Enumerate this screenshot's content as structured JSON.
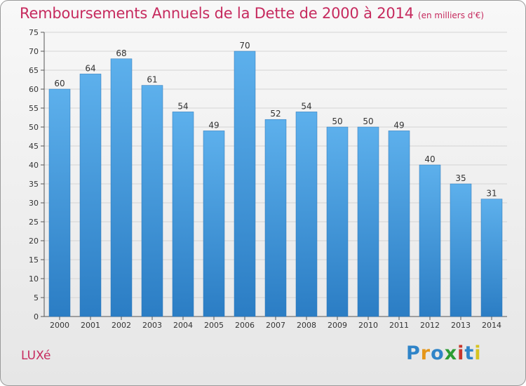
{
  "chart_data": {
    "type": "bar",
    "title": "Remboursements Annuels de la Dette de 2000 à 2014",
    "subtitle": "(en milliers d'€)",
    "categories": [
      "2000",
      "2001",
      "2002",
      "2003",
      "2004",
      "2005",
      "2006",
      "2007",
      "2008",
      "2009",
      "2010",
      "2011",
      "2012",
      "2013",
      "2014"
    ],
    "values": [
      60,
      64,
      68,
      61,
      54,
      49,
      70,
      52,
      54,
      50,
      50,
      49,
      40,
      35,
      31
    ],
    "ylim": [
      0,
      75
    ],
    "yticks": [
      0,
      5,
      10,
      15,
      20,
      25,
      30,
      35,
      40,
      45,
      50,
      55,
      60,
      65,
      70,
      75
    ],
    "xlabel": "",
    "ylabel": "",
    "grid": true,
    "bar_color": "#3d93d9"
  },
  "commune": "LUXé",
  "logo": {
    "letters": [
      "P",
      "r",
      "o",
      "x",
      "i",
      "t",
      "i"
    ]
  }
}
